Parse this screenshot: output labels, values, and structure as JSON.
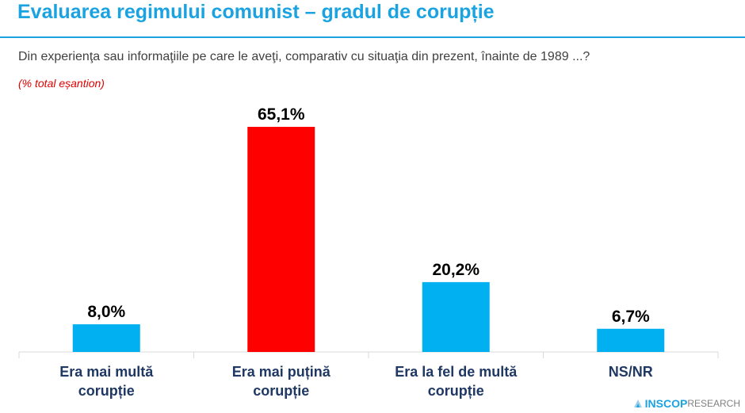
{
  "header": {
    "title": "Evaluarea regimului comunist – gradul de corupție",
    "question": "Din experienţa sau informaţiile pe care le aveţi, comparativ cu situaţia din prezent, înainte de 1989 ...?",
    "sample_note": "(% total eșantion)"
  },
  "logo": {
    "brand": "INSCOP",
    "suffix": "RESEARCH",
    "icon": "inscop-logo-icon"
  },
  "colors": {
    "accent": "#1aa3e0",
    "bar_default": "#00b0f0",
    "bar_highlight": "#ff0000",
    "note": "#e00000"
  },
  "chart_data": {
    "type": "bar",
    "categories": [
      [
        "Era mai multă",
        "corupție"
      ],
      [
        "Era mai puțină",
        "corupție"
      ],
      [
        "Era la fel de multă",
        "corupție"
      ],
      [
        "NS/NR"
      ]
    ],
    "values": [
      8.0,
      65.1,
      20.2,
      6.7
    ],
    "data_labels": [
      "8,0%",
      "65,1%",
      "20,2%",
      "6,7%"
    ],
    "bar_colors": [
      "#00b0f0",
      "#ff0000",
      "#00b0f0",
      "#00b0f0"
    ],
    "unit": "%",
    "ylim": [
      0,
      100
    ],
    "grid": false,
    "legend": "none"
  }
}
